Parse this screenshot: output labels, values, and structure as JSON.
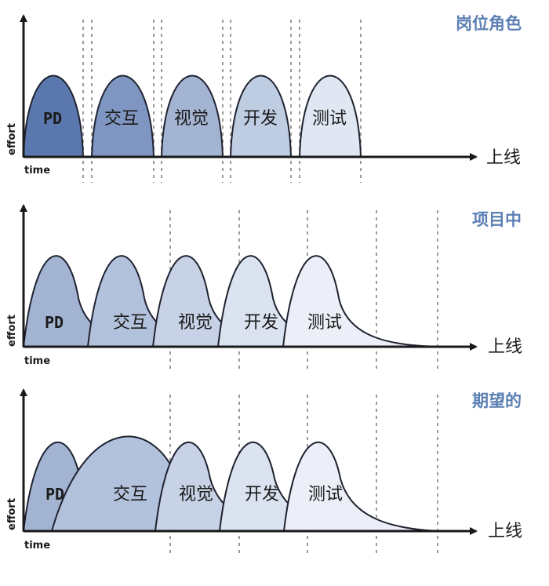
{
  "colors": {
    "title": "#5b7fb3",
    "phases": [
      "#5b78ae",
      "#7e96c1",
      "#a3b4d3",
      "#bfcde3",
      "#e1e7f2"
    ]
  },
  "panels": [
    {
      "title": "岗位角色",
      "launch": "上线",
      "y_label": "effort",
      "x_label": "time",
      "phases": [
        "PD",
        "交互",
        "视觉",
        "开发",
        "测试"
      ]
    },
    {
      "title": "项目中",
      "launch": "上线",
      "y_label": "effort",
      "x_label": "time",
      "phases": [
        "PD",
        "交互",
        "视觉",
        "开发",
        "测试"
      ]
    },
    {
      "title": "期望的",
      "launch": "上线",
      "y_label": "effort",
      "x_label": "time",
      "phases": [
        "PD",
        "交互",
        "视觉",
        "开发",
        "测试"
      ]
    }
  ]
}
